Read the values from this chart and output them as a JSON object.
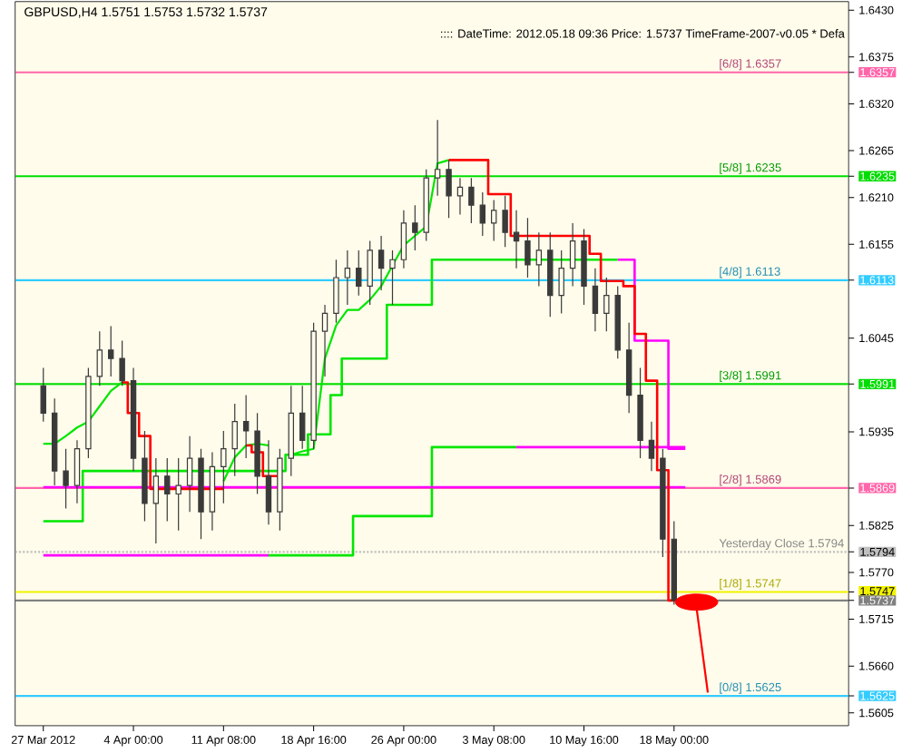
{
  "chart_data": {
    "type": "candlestick",
    "title": "GBPUSD,H4  1.5751 1.5753 1.5732 1.5737",
    "subtitle": ":::: DateTime: 2012.05.18 09:36   Price: 1.5737   TimeFrame-2007-v0.05   *  Defa",
    "color": "#3a3a3a",
    "categories": [
      "27 Mar 2012",
      null,
      null,
      null,
      null,
      null,
      null,
      null,
      "4 Apr 00:00",
      null,
      null,
      null,
      null,
      null,
      null,
      null,
      "11 Apr 08:00",
      null,
      null,
      null,
      null,
      null,
      null,
      null,
      "18 Apr 16:00",
      null,
      null,
      null,
      null,
      null,
      null,
      null,
      "26 Apr 00:00",
      null,
      null,
      null,
      null,
      null,
      null,
      null,
      "3 May 08:00",
      null,
      null,
      null,
      null,
      null,
      null,
      null,
      "10 May 16:00",
      null,
      null,
      null,
      null,
      null,
      null,
      null,
      "18 May 00:00",
      null,
      null,
      null,
      null,
      null,
      null,
      null,
      null,
      null,
      null,
      null,
      null,
      null,
      null,
      null
    ],
    "ohlc": [
      [
        1.5989,
        1.601,
        1.5947,
        1.5957
      ],
      [
        1.5957,
        1.5974,
        1.5872,
        1.5889
      ],
      [
        1.5889,
        1.5915,
        1.5845,
        1.5872
      ],
      [
        1.5872,
        1.5925,
        1.5851,
        1.5915
      ],
      [
        1.5915,
        1.601,
        1.5904,
        1.6
      ],
      [
        1.6,
        1.6053,
        1.5989,
        1.6031
      ],
      [
        1.6031,
        1.6059,
        1.6,
        1.6021
      ],
      [
        1.6021,
        1.6042,
        1.5989,
        1.5995
      ],
      [
        1.5995,
        1.601,
        1.5889,
        1.5904
      ],
      [
        1.5904,
        1.5936,
        1.583,
        1.5851
      ],
      [
        1.5851,
        1.5904,
        1.5804,
        1.5883
      ],
      [
        1.5883,
        1.5904,
        1.583,
        1.5862
      ],
      [
        1.5862,
        1.5904,
        1.5819,
        1.5872
      ],
      [
        1.5872,
        1.593,
        1.5841,
        1.5904
      ],
      [
        1.5904,
        1.5915,
        1.5809,
        1.5841
      ],
      [
        1.5841,
        1.5911,
        1.5819,
        1.5894
      ],
      [
        1.5894,
        1.5936,
        1.5851,
        1.5915
      ],
      [
        1.5915,
        1.5968,
        1.5883,
        1.5947
      ],
      [
        1.5947,
        1.5978,
        1.5904,
        1.5936
      ],
      [
        1.5936,
        1.5957,
        1.5862,
        1.5883
      ],
      [
        1.5883,
        1.5925,
        1.5826,
        1.5841
      ],
      [
        1.5841,
        1.5915,
        1.5819,
        1.5904
      ],
      [
        1.5904,
        1.5989,
        1.5883,
        1.5957
      ],
      [
        1.5957,
        1.5989,
        1.5915,
        1.5925
      ],
      [
        1.5925,
        1.6063,
        1.5915,
        1.6053
      ],
      [
        1.6053,
        1.6084,
        1.6,
        1.6074
      ],
      [
        1.6074,
        1.6137,
        1.6063,
        1.6116
      ],
      [
        1.6116,
        1.6148,
        1.6084,
        1.6127
      ],
      [
        1.6127,
        1.6148,
        1.6095,
        1.6106
      ],
      [
        1.6106,
        1.6159,
        1.6084,
        1.6148
      ],
      [
        1.6148,
        1.6165,
        1.6101,
        1.6127
      ],
      [
        1.6127,
        1.6148,
        1.6084,
        1.6137
      ],
      [
        1.6137,
        1.6195,
        1.6127,
        1.618
      ],
      [
        1.618,
        1.6201,
        1.6148,
        1.6169
      ],
      [
        1.6169,
        1.6243,
        1.6159,
        1.6233
      ],
      [
        1.6233,
        1.6301,
        1.6212,
        1.6243
      ],
      [
        1.6243,
        1.6254,
        1.6186,
        1.6212
      ],
      [
        1.6212,
        1.6233,
        1.619,
        1.6222
      ],
      [
        1.6222,
        1.6233,
        1.618,
        1.6201
      ],
      [
        1.6201,
        1.6216,
        1.6165,
        1.618
      ],
      [
        1.618,
        1.6207,
        1.6159,
        1.6195
      ],
      [
        1.6195,
        1.6212,
        1.6152,
        1.6169
      ],
      [
        1.6169,
        1.6195,
        1.6127,
        1.6159
      ],
      [
        1.6159,
        1.6186,
        1.6116,
        1.6131
      ],
      [
        1.6131,
        1.6169,
        1.6106,
        1.6148
      ],
      [
        1.6148,
        1.6169,
        1.607,
        1.6095
      ],
      [
        1.6095,
        1.6148,
        1.6074,
        1.6127
      ],
      [
        1.6127,
        1.618,
        1.6106,
        1.6159
      ],
      [
        1.6159,
        1.6173,
        1.6084,
        1.6106
      ],
      [
        1.6106,
        1.6127,
        1.6053,
        1.6074
      ],
      [
        1.6074,
        1.6116,
        1.6053,
        1.6095
      ],
      [
        1.6095,
        1.6106,
        1.6021,
        1.6031
      ],
      [
        1.6031,
        1.6063,
        1.5957,
        1.5978
      ],
      [
        1.5978,
        1.601,
        1.5904,
        1.5925
      ],
      [
        1.5925,
        1.5947,
        1.5889,
        1.5904
      ],
      [
        1.5904,
        1.5915,
        1.5788,
        1.5809
      ],
      [
        1.5809,
        1.583,
        1.5732,
        1.5737
      ],
      null,
      null,
      null,
      null,
      null,
      null,
      null,
      null,
      null,
      null,
      null,
      null,
      null,
      null,
      null
    ],
    "series": [
      {
        "type": "line",
        "color": "#00e600",
        "values": [
          1.5921,
          1.5921,
          1.593,
          1.594,
          1.5947,
          1.5965,
          1.5983,
          1.5993,
          null,
          null,
          null,
          null,
          null,
          null,
          null,
          null,
          1.5877,
          1.5905,
          1.5919,
          1.5921,
          1.5919,
          null,
          1.5908,
          1.5912,
          1.5915,
          1.6021,
          1.606,
          1.6078,
          1.6078,
          1.609,
          1.6106,
          1.613,
          1.6154,
          1.6165,
          1.6176,
          1.625,
          1.6254,
          null,
          null,
          null,
          null,
          null,
          null,
          null,
          null,
          null,
          null,
          null,
          null,
          null,
          null,
          null,
          null,
          null,
          null,
          null,
          null,
          null,
          null,
          null,
          null,
          null,
          null,
          null,
          null,
          null,
          null,
          null,
          null,
          null,
          null,
          null
        ]
      },
      {
        "type": "step",
        "color": "#00e600",
        "values": [
          1.583,
          1.583,
          1.583,
          1.583,
          1.5889,
          1.5889,
          1.5889,
          1.5889,
          1.5889,
          1.5889,
          1.5889,
          1.5889,
          1.5889,
          1.5889,
          1.5889,
          1.5889,
          1.5889,
          1.5889,
          1.5889,
          1.5889,
          1.5889,
          1.5889,
          1.5908,
          1.5908,
          1.5932,
          1.5932,
          1.5978,
          1.6021,
          1.6021,
          1.6021,
          1.6021,
          1.6084,
          1.6084,
          1.6084,
          1.6084,
          1.6137,
          1.6137,
          1.6137,
          1.6137,
          1.6137,
          1.6137,
          1.6137,
          1.6137,
          1.6137,
          1.6137,
          1.6137,
          1.6137,
          1.6137,
          1.6137,
          1.6137,
          1.6137,
          1.6137,
          null,
          null,
          null,
          null,
          null,
          null,
          null,
          null,
          null,
          null,
          null,
          null,
          null,
          null,
          null,
          null,
          null,
          null,
          null,
          null
        ]
      },
      {
        "type": "step",
        "color": "#ff00ff",
        "values": [
          null,
          null,
          null,
          null,
          null,
          null,
          null,
          null,
          null,
          null,
          null,
          null,
          null,
          null,
          null,
          null,
          null,
          null,
          null,
          null,
          null,
          null,
          null,
          null,
          null,
          null,
          null,
          null,
          null,
          null,
          null,
          null,
          null,
          null,
          null,
          null,
          null,
          null,
          null,
          null,
          null,
          null,
          null,
          null,
          null,
          null,
          null,
          null,
          null,
          null,
          null,
          1.6137,
          1.6137,
          1.6042,
          1.6042,
          1.6042,
          1.5915,
          1.5915,
          null,
          null,
          null,
          null,
          null,
          null,
          null,
          null,
          null,
          null,
          null,
          null,
          null,
          null
        ]
      },
      {
        "type": "step",
        "color": "#ff00ff",
        "values": [
          1.579,
          1.579,
          1.579,
          1.579,
          1.579,
          1.579,
          1.579,
          1.579,
          1.579,
          1.579,
          1.579,
          1.579,
          1.579,
          1.579,
          1.579,
          1.579,
          1.579,
          1.579,
          1.579,
          1.579,
          1.579,
          null,
          null,
          null,
          null,
          null,
          null,
          null,
          null,
          null,
          null,
          null,
          null,
          null,
          null,
          null,
          null,
          null,
          null,
          null,
          null,
          null,
          null,
          null,
          null,
          null,
          null,
          null,
          null,
          null,
          null,
          null,
          null,
          null,
          null,
          null,
          null,
          null,
          null,
          null,
          null,
          null,
          null,
          null,
          null,
          null,
          null,
          null,
          null,
          null,
          null,
          null
        ]
      },
      {
        "type": "step",
        "color": "#00e600",
        "values": [
          null,
          null,
          null,
          null,
          null,
          null,
          null,
          null,
          null,
          null,
          null,
          null,
          null,
          null,
          null,
          null,
          null,
          null,
          null,
          null,
          1.579,
          1.579,
          1.579,
          1.579,
          1.579,
          1.579,
          1.579,
          1.579,
          1.5836,
          1.5836,
          1.5836,
          1.5836,
          1.5836,
          1.5836,
          1.5836,
          1.5917,
          1.5917,
          1.5917,
          1.5917,
          1.5917,
          1.5917,
          1.5917,
          1.5917,
          null,
          null,
          null,
          null,
          null,
          null,
          null,
          null,
          null,
          null,
          null,
          null,
          null,
          null,
          null,
          null,
          null,
          null,
          null,
          null,
          null,
          null,
          null,
          null,
          null,
          null,
          null,
          null,
          null
        ]
      },
      {
        "type": "step",
        "color": "#ff00ff",
        "values": [
          null,
          null,
          null,
          null,
          null,
          null,
          null,
          null,
          null,
          null,
          null,
          null,
          null,
          null,
          null,
          null,
          null,
          null,
          null,
          null,
          null,
          null,
          null,
          null,
          null,
          null,
          null,
          null,
          null,
          null,
          null,
          null,
          null,
          null,
          null,
          null,
          null,
          null,
          null,
          null,
          null,
          null,
          1.5917,
          1.5917,
          1.5917,
          1.5917,
          1.5917,
          1.5917,
          1.5917,
          1.5917,
          1.5917,
          1.5917,
          1.5917,
          1.5917,
          1.5917,
          1.5917,
          1.5917,
          1.5917,
          null,
          null,
          null,
          null,
          null,
          null,
          null,
          null,
          null,
          null,
          null,
          null,
          null,
          null
        ]
      },
      {
        "type": "step",
        "color": "#ff00ff",
        "values": [
          1.587,
          1.587,
          1.587,
          1.587,
          1.587,
          1.587,
          1.587,
          1.587,
          1.587,
          1.587,
          1.587,
          1.587,
          1.587,
          1.587,
          1.587,
          1.587,
          1.587,
          1.587,
          1.587,
          1.587,
          1.587,
          1.587,
          1.587,
          1.587,
          1.587,
          1.587,
          1.587,
          1.587,
          1.587,
          1.587,
          1.587,
          1.587,
          1.587,
          1.587,
          1.587,
          1.587,
          1.587,
          1.587,
          1.587,
          1.587,
          1.587,
          1.587,
          1.587,
          1.587,
          1.587,
          1.587,
          1.587,
          1.587,
          1.587,
          1.587,
          1.587,
          1.587,
          1.587,
          1.587,
          1.587,
          1.587,
          1.587,
          1.587,
          null,
          null,
          null,
          null,
          null,
          null,
          null,
          null,
          null,
          null,
          null,
          null,
          null,
          null
        ]
      },
      {
        "type": "step",
        "color": "#ff0000",
        "values": [
          null,
          null,
          null,
          null,
          null,
          null,
          null,
          1.5993,
          1.5957,
          1.593,
          1.5868,
          1.5868,
          1.5868,
          1.5868,
          1.5868,
          1.5868,
          1.5868,
          null,
          1.5919,
          1.5911,
          1.5883,
          1.5883,
          null,
          null,
          null,
          null,
          null,
          null,
          null,
          null,
          null,
          null,
          null,
          null,
          null,
          null,
          1.6254,
          1.6254,
          1.6254,
          1.6254,
          1.6214,
          1.6214,
          1.6165,
          1.6165,
          1.6165,
          1.6165,
          1.6165,
          1.6165,
          1.6165,
          1.6144,
          1.6112,
          1.6112,
          1.6106,
          1.605,
          1.5995,
          1.589,
          1.5737,
          1.5737,
          null,
          null,
          null,
          null,
          null,
          null,
          null,
          null,
          null,
          null,
          null,
          null,
          null,
          null
        ]
      },
      {
        "type": "line",
        "color": "#ff0000",
        "values": [
          null,
          null,
          null,
          null,
          null,
          null,
          null,
          null,
          null,
          null,
          null,
          null,
          null,
          null,
          null,
          null,
          null,
          null,
          null,
          null,
          null,
          null,
          null,
          null,
          null,
          null,
          null,
          null,
          null,
          null,
          null,
          null,
          null,
          null,
          null,
          null,
          null,
          null,
          null,
          null,
          null,
          null,
          null,
          null,
          null,
          null,
          null,
          null,
          null,
          null,
          null,
          null,
          null,
          null,
          null,
          null,
          null,
          null,
          1.5728,
          1.5629,
          null,
          null,
          null,
          null,
          null,
          null,
          null,
          null,
          null,
          null,
          null,
          null
        ]
      },
      {
        "type": "scatter",
        "color": "#ff0000",
        "marker": "circle",
        "values": [
          null,
          null,
          null,
          null,
          null,
          null,
          null,
          null,
          null,
          null,
          null,
          null,
          null,
          null,
          null,
          null,
          null,
          null,
          null,
          null,
          null,
          null,
          null,
          null,
          null,
          null,
          null,
          null,
          null,
          null,
          null,
          null,
          null,
          null,
          null,
          null,
          null,
          null,
          null,
          null,
          null,
          null,
          null,
          null,
          null,
          null,
          null,
          null,
          null,
          null,
          null,
          null,
          null,
          null,
          null,
          null,
          null,
          null,
          1.5735,
          null,
          null,
          null,
          null,
          null,
          null,
          null,
          null,
          null,
          null,
          null,
          null,
          null
        ]
      }
    ],
    "ref_lines": [
      {
        "axis": "y",
        "value": 1.6357,
        "label": "[6/8]  1.6357",
        "color": "#ff66aa"
      },
      {
        "axis": "y",
        "value": 1.6235,
        "label": "[5/8]  1.6235",
        "color": "#00dd00"
      },
      {
        "axis": "y",
        "value": 1.6113,
        "label": "[4/8]  1.6113",
        "color": "#33ccff"
      },
      {
        "axis": "y",
        "value": 1.5991,
        "label": "[3/8]  1.5991",
        "color": "#00dd00"
      },
      {
        "axis": "y",
        "value": 1.5869,
        "label": "[2/8]  1.5869",
        "color": "#ff66aa"
      },
      {
        "axis": "y",
        "value": 1.5794,
        "label": "Yesterday Close 1.5794",
        "color": "#c0c0c0",
        "line_style": "dotted"
      },
      {
        "axis": "y",
        "value": 1.5747,
        "label": "[1/8]  1.5747",
        "color": "#f2f200"
      },
      {
        "axis": "y",
        "value": 1.5737,
        "color": "#808080"
      },
      {
        "axis": "y",
        "value": 1.5625,
        "label": "[0/8]  1.5625",
        "color": "#33ccff"
      }
    ],
    "ylim": [
      1.559,
      1.644
    ],
    "yticks": [
      {
        "value": 1.643,
        "label": "1.6430"
      },
      1.6375,
      1.6357,
      {
        "value": 1.632,
        "label": "1.6320"
      },
      1.6265,
      1.6235,
      {
        "value": 1.621,
        "label": "1.6210"
      },
      1.6155,
      1.6113,
      1.6045,
      1.5991,
      1.5935,
      1.5869,
      1.5825,
      1.5794,
      {
        "value": 1.577,
        "label": "1.5770"
      },
      1.5747,
      1.5737,
      1.5715,
      {
        "value": 1.566,
        "label": "1.5660"
      },
      1.5625,
      1.5605
    ]
  }
}
